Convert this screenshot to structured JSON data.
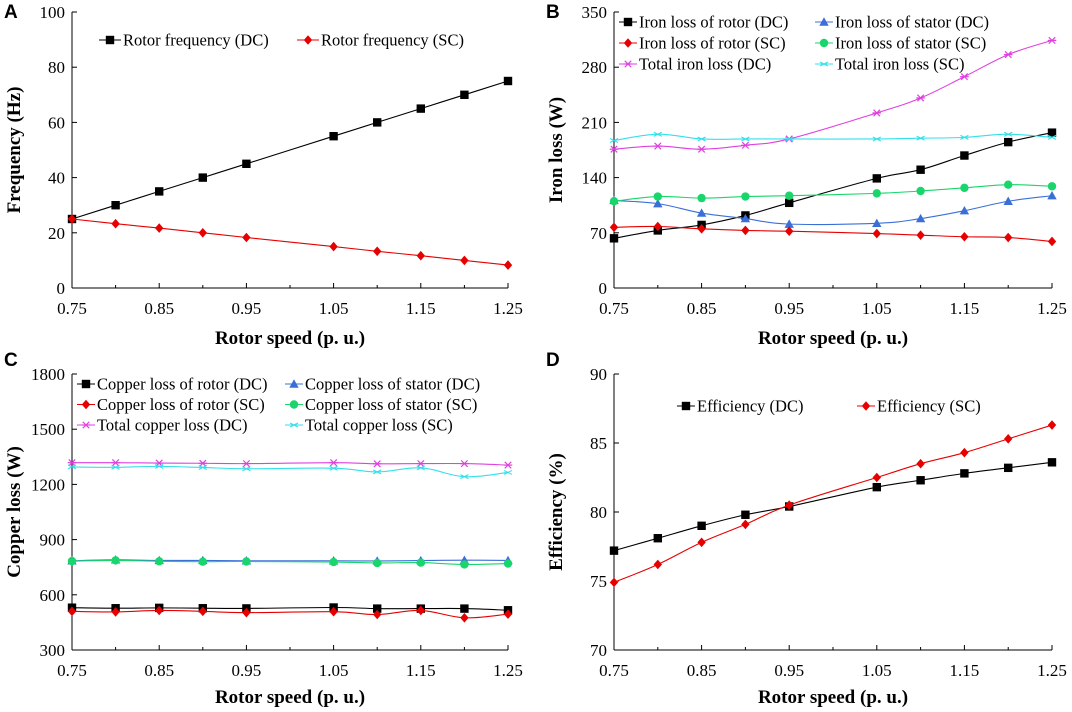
{
  "chart_data": [
    {
      "id": "A",
      "type": "line",
      "panel_label": "A",
      "xlabel": "Rotor speed (p. u.)",
      "ylabel": "Frequency (Hz)",
      "xlim": [
        0.75,
        1.25
      ],
      "ylim": [
        0,
        100
      ],
      "xticks": [
        "0.75",
        "0.85",
        "0.95",
        "1.05",
        "1.15",
        "1.25"
      ],
      "yticks": [
        "0",
        "20",
        "40",
        "60",
        "80",
        "100"
      ],
      "x": [
        0.75,
        0.8,
        0.85,
        0.9,
        0.95,
        1.05,
        1.1,
        1.15,
        1.2,
        1.25
      ],
      "series": [
        {
          "name": "Rotor frequency (DC)",
          "color": "#000000",
          "marker": "square",
          "values": [
            25,
            30,
            35,
            40,
            45,
            55,
            60,
            65,
            70,
            75
          ]
        },
        {
          "name": "Rotor frequency (SC)",
          "color": "#e60000",
          "marker": "diamond",
          "values": [
            25,
            23.3,
            21.7,
            20,
            18.3,
            15,
            13.3,
            11.7,
            10,
            8.3
          ]
        }
      ]
    },
    {
      "id": "B",
      "type": "line",
      "panel_label": "B",
      "xlabel": "Rotor speed (p. u.)",
      "ylabel": "Iron loss (W)",
      "xlim": [
        0.75,
        1.25
      ],
      "ylim": [
        0,
        350
      ],
      "xticks": [
        "0.75",
        "0.85",
        "0.95",
        "1.05",
        "1.15",
        "1.25"
      ],
      "yticks": [
        "0",
        "70",
        "140",
        "210",
        "280",
        "350"
      ],
      "x": [
        0.75,
        0.8,
        0.85,
        0.9,
        0.95,
        1.05,
        1.1,
        1.15,
        1.2,
        1.25
      ],
      "series": [
        {
          "name": "Iron loss of rotor (DC)",
          "color": "#000000",
          "marker": "square",
          "values": [
            63,
            73,
            80,
            92,
            108,
            139,
            150,
            168,
            185,
            197
          ]
        },
        {
          "name": "Iron loss of stator (DC)",
          "color": "#3b6fd8",
          "marker": "triangle",
          "values": [
            111,
            107,
            95,
            88,
            81,
            82,
            88,
            98,
            110,
            117
          ]
        },
        {
          "name": "Iron loss of rotor (SC)",
          "color": "#e60000",
          "marker": "diamond",
          "values": [
            77,
            78,
            75,
            73,
            72,
            69,
            67,
            65,
            64,
            59
          ]
        },
        {
          "name": "Iron loss of stator (SC)",
          "color": "#18d66b",
          "marker": "circle",
          "values": [
            110,
            116,
            114,
            116,
            117,
            120,
            123,
            127,
            131,
            129
          ]
        },
        {
          "name": "Total iron loss (DC)",
          "color": "#e040e0",
          "marker": "star",
          "values": [
            176,
            180,
            176,
            181,
            189,
            222,
            241,
            268,
            296,
            314
          ]
        },
        {
          "name": "Total iron loss (SC)",
          "color": "#33e0ea",
          "marker": "cross",
          "values": [
            187,
            195,
            189,
            189,
            189,
            189,
            190,
            191,
            195,
            191
          ]
        }
      ]
    },
    {
      "id": "C",
      "type": "line",
      "panel_label": "C",
      "xlabel": "Rotor speed (p. u.)",
      "ylabel": "Copper loss (W)",
      "xlim": [
        0.75,
        1.25
      ],
      "ylim": [
        300,
        1800
      ],
      "xticks": [
        "0.75",
        "0.85",
        "0.95",
        "1.05",
        "1.15",
        "1.25"
      ],
      "yticks": [
        "300",
        "600",
        "900",
        "1200",
        "1500",
        "1800"
      ],
      "x": [
        0.75,
        0.8,
        0.85,
        0.9,
        0.95,
        1.05,
        1.1,
        1.15,
        1.2,
        1.25
      ],
      "series": [
        {
          "name": "Copper loss of rotor (DC)",
          "color": "#000000",
          "marker": "square",
          "values": [
            530,
            527,
            529,
            527,
            526,
            531,
            525,
            525,
            525,
            516
          ]
        },
        {
          "name": "Copper loss of stator (DC)",
          "color": "#3b6fd8",
          "marker": "triangle",
          "values": [
            785,
            790,
            787,
            787,
            785,
            785,
            784,
            786,
            788,
            787
          ]
        },
        {
          "name": "Copper loss of rotor (SC)",
          "color": "#e60000",
          "marker": "diamond",
          "values": [
            510,
            507,
            515,
            510,
            503,
            508,
            493,
            515,
            475,
            495
          ]
        },
        {
          "name": "Copper loss of stator (SC)",
          "color": "#18d66b",
          "marker": "circle",
          "values": [
            783,
            787,
            782,
            780,
            781,
            778,
            773,
            775,
            765,
            770
          ]
        },
        {
          "name": "Total copper loss (DC)",
          "color": "#e040e0",
          "marker": "star",
          "values": [
            1318,
            1318,
            1316,
            1315,
            1313,
            1318,
            1312,
            1313,
            1313,
            1305
          ]
        },
        {
          "name": "Total copper loss (SC)",
          "color": "#33e0ea",
          "marker": "cross",
          "values": [
            1295,
            1293,
            1298,
            1292,
            1285,
            1288,
            1268,
            1290,
            1242,
            1265
          ]
        }
      ]
    },
    {
      "id": "D",
      "type": "line",
      "panel_label": "D",
      "xlabel": "Rotor speed (p. u.)",
      "ylabel": "Efficiency (%)",
      "xlim": [
        0.75,
        1.25
      ],
      "ylim": [
        70,
        90
      ],
      "xticks": [
        "0.75",
        "0.85",
        "0.95",
        "1.05",
        "1.15",
        "1.25"
      ],
      "yticks": [
        "70",
        "75",
        "80",
        "85",
        "90"
      ],
      "x": [
        0.75,
        0.8,
        0.85,
        0.9,
        0.95,
        1.05,
        1.1,
        1.15,
        1.2,
        1.25
      ],
      "series": [
        {
          "name": "Efficiency (DC)",
          "color": "#000000",
          "marker": "square",
          "values": [
            77.2,
            78.1,
            79.0,
            79.8,
            80.4,
            81.8,
            82.3,
            82.8,
            83.2,
            83.6
          ]
        },
        {
          "name": "Efficiency (SC)",
          "color": "#e60000",
          "marker": "diamond",
          "values": [
            74.9,
            76.2,
            77.8,
            79.1,
            80.5,
            82.5,
            83.5,
            84.3,
            85.3,
            86.3
          ]
        }
      ]
    }
  ]
}
